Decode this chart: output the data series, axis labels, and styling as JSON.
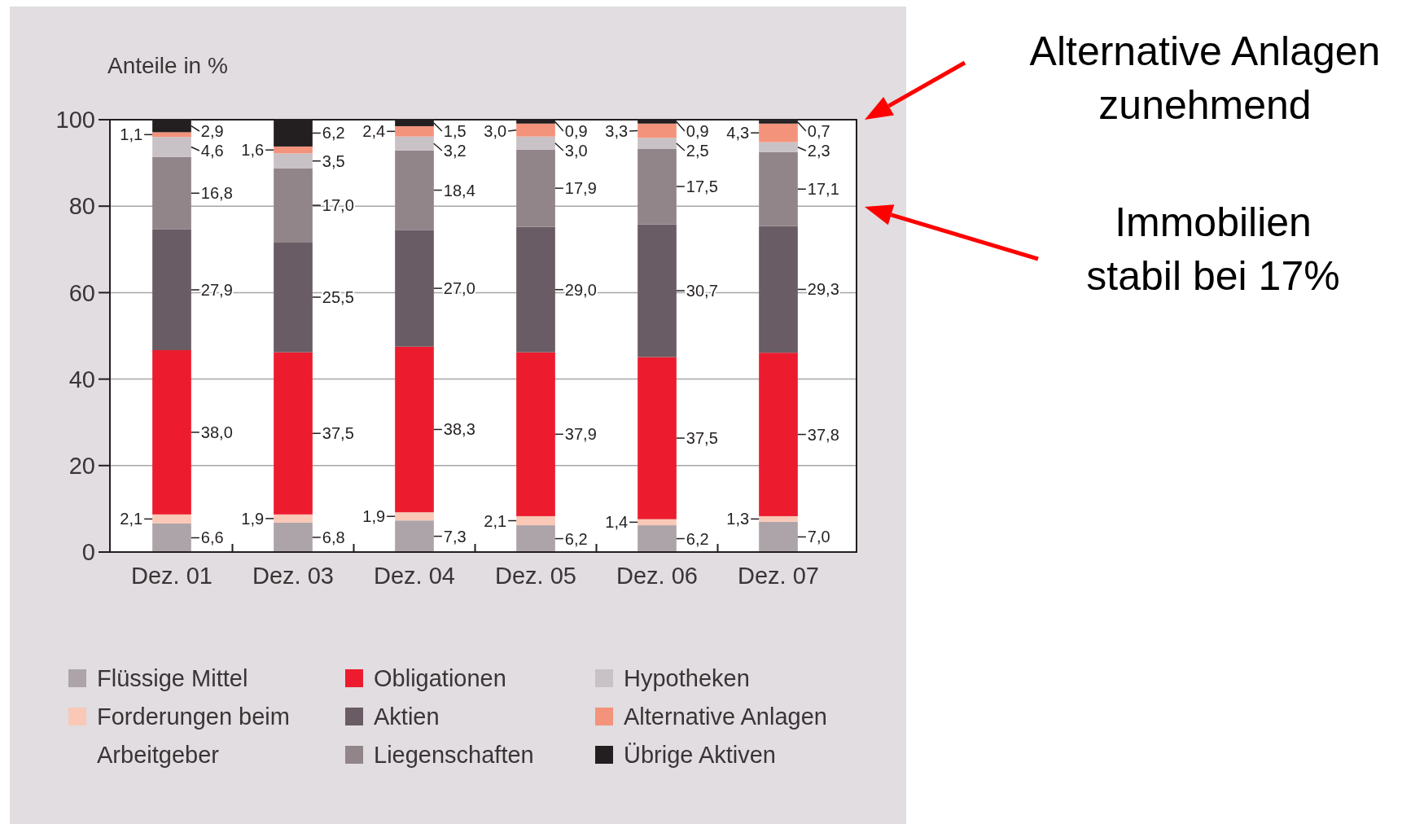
{
  "chart_data": {
    "type": "bar",
    "stacked": true,
    "ylabel": "Anteile in %",
    "categories": [
      "Dez. 01",
      "Dez. 03",
      "Dez. 04",
      "Dez. 05",
      "Dez. 06",
      "Dez. 07"
    ],
    "series": [
      {
        "name": "Flüssige Mittel",
        "color": "#ada4aa",
        "values": [
          6.6,
          6.8,
          7.3,
          6.2,
          6.2,
          7.0
        ],
        "value_labels": [
          "6,6",
          "6,8",
          "7,3",
          "6,2",
          "6,2",
          "7,0"
        ]
      },
      {
        "name": "Forderungen beim Arbeitgeber",
        "color": "#f9c8b6",
        "values": [
          2.1,
          1.9,
          1.9,
          2.1,
          1.4,
          1.3
        ],
        "value_labels": [
          "2,1",
          "1,9",
          "1,9",
          "2,1",
          "1,4",
          "1,3"
        ]
      },
      {
        "name": "Obligationen",
        "color": "#ec1c2e",
        "values": [
          38.0,
          37.5,
          38.3,
          37.9,
          37.5,
          37.8
        ],
        "value_labels": [
          "38,0",
          "37,5",
          "38,3",
          "37,9",
          "37,5",
          "37,8"
        ]
      },
      {
        "name": "Aktien",
        "color": "#695c64",
        "values": [
          27.9,
          25.5,
          27.0,
          29.0,
          30.7,
          29.3
        ],
        "value_labels": [
          "27,9",
          "25,5",
          "27,0",
          "29,0",
          "30,7",
          "29,3"
        ]
      },
      {
        "name": "Liegenschaften",
        "color": "#918589",
        "values": [
          16.8,
          17.0,
          18.4,
          17.9,
          17.5,
          17.1
        ],
        "value_labels": [
          "16,8",
          "17,0",
          "18,4",
          "17,9",
          "17,5",
          "17,1"
        ]
      },
      {
        "name": "Hypotheken",
        "color": "#c8c2c7",
        "values": [
          4.6,
          3.5,
          3.2,
          3.0,
          2.5,
          2.3
        ],
        "value_labels": [
          "4,6",
          "3,5",
          "3,2",
          "3,0",
          "2,5",
          "2,3"
        ]
      },
      {
        "name": "Alternative Anlagen",
        "color": "#f4937c",
        "values": [
          1.1,
          1.6,
          2.4,
          3.0,
          3.3,
          4.3
        ],
        "value_labels": [
          "1,1",
          "1,6",
          "2,4",
          "3,0",
          "3,3",
          "4,3"
        ]
      },
      {
        "name": "Übrige Aktiven",
        "color": "#231f20",
        "values": [
          2.9,
          6.2,
          1.5,
          0.9,
          0.9,
          0.7
        ],
        "value_labels": [
          "2,9",
          "6,2",
          "1,5",
          "0,9",
          "0,9",
          "0,7"
        ]
      }
    ],
    "ylim": [
      0,
      100
    ],
    "yticks": [
      0,
      20,
      40,
      60,
      80,
      100
    ],
    "grid": "y",
    "legend": "bottom",
    "annotations": [
      "Alternative Anlagen zunehmend",
      "Immobilien stabil bei 17%"
    ]
  }
}
